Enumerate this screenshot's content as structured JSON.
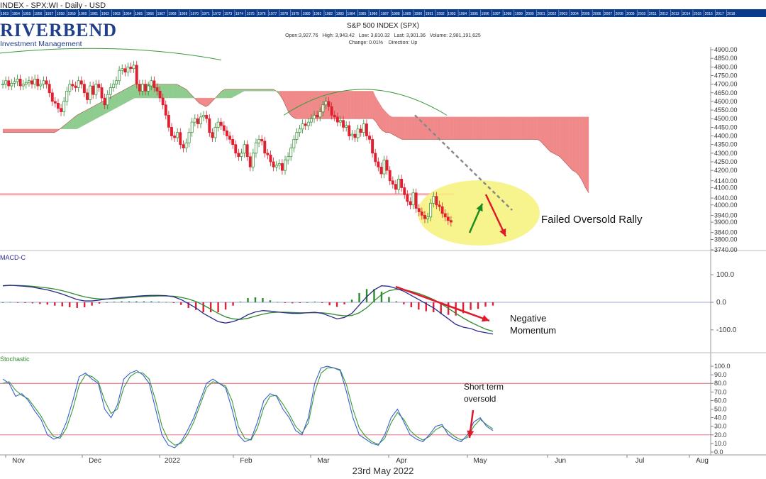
{
  "header": {
    "title": "INDEX - SPX:WI - Daily - USD",
    "logo_main": "RIVERBEND",
    "logo_sub": "Investment Management"
  },
  "chart_title": "S&P 500 INDEX (SPX)",
  "stats": {
    "open_label": "Open:",
    "open": "3,927.76",
    "high_label": "High:",
    "high": "3,943.42",
    "low_label": "Low:",
    "low": "3,810.32",
    "last_label": "Last:",
    "last": "3,901.36",
    "volume_label": "Volume:",
    "volume": "2,981,191,625",
    "change_label": "Change:",
    "change": "0.01%",
    "direction_label": "Direction:",
    "direction": "Up"
  },
  "timeline_years": [
    "1953",
    "1954",
    "1955",
    "1956",
    "1957",
    "1958",
    "1959",
    "1960",
    "1961",
    "1962",
    "1963",
    "1964",
    "1965",
    "1966",
    "1967",
    "1968",
    "1969",
    "1970",
    "1971",
    "1972",
    "1973",
    "1974",
    "1975",
    "1976",
    "1977",
    "1978",
    "1979",
    "1980",
    "1981",
    "1982",
    "1983",
    "1984",
    "1985",
    "1986",
    "1987",
    "1988",
    "1989",
    "1990",
    "1991",
    "1992",
    "1993",
    "1994",
    "1995",
    "1996",
    "1997",
    "1998",
    "1999",
    "2000",
    "2001",
    "2002",
    "2003",
    "2004",
    "2005",
    "2006",
    "2007",
    "2008",
    "2009",
    "2010",
    "2011",
    "2012",
    "2013",
    "2014",
    "2015",
    "2016",
    "2017",
    "2018"
  ],
  "panels": {
    "macd_label": "MACD-C",
    "stoch_label": "Stochastic"
  },
  "annotations": {
    "failed_rally": "Failed Oversold Rally",
    "negative_momentum_1": "Negative",
    "negative_momentum_2": "Momentum",
    "short_term_1": "Short term",
    "short_term_2": "oversold"
  },
  "footer_date": "23rd May 2022",
  "colors": {
    "up": "#2e8b2e",
    "down": "#e02030",
    "cloud_bull": "#8fcc8f",
    "cloud_bear": "#f08a8a",
    "support": "#f4a0a8",
    "highlight": "#f6f27a",
    "macd_line": "#2a2a8a",
    "signal_line": "#2e8b2e",
    "stoch_k": "#3a5fcd",
    "stoch_d": "#3a9a3a",
    "trend": "#888888",
    "arrow_up": "#1f8a1f",
    "arrow_down": "#e0182a"
  },
  "chart_data": [
    {
      "type": "candlestick",
      "title": "S&P 500 INDEX (SPX)",
      "ylim": [
        3740,
        4900
      ],
      "y_ticks": [
        4900,
        4850,
        4800,
        4750,
        4700,
        4650,
        4600,
        4550,
        4500,
        4450,
        4400,
        4350,
        4300,
        4250,
        4200,
        4140,
        4100,
        4040,
        4000,
        3940,
        3900,
        3840,
        3800,
        3740
      ],
      "y_tick_labels": [
        "4900.00",
        "4850.00",
        "4800.00",
        "4750.00",
        "4700.00",
        "4650.00",
        "4600.00",
        "4550.00",
        "4500.00",
        "4450.00",
        "4400.00",
        "4350.00",
        "4300.00",
        "4250.00",
        "4200.00",
        "4140.00",
        "4100.00",
        "4040.00",
        "4000.00",
        "3940.00",
        "3900.00",
        "3840.00",
        "3800.00",
        "3740.00"
      ],
      "x_labels": [
        "Nov",
        "Dec",
        "2022",
        "Feb",
        "Mar",
        "Apr",
        "May",
        "Jun",
        "Jul",
        "Aug"
      ],
      "closes": [
        4700,
        4720,
        4690,
        4705,
        4715,
        4730,
        4690,
        4700,
        4710,
        4720,
        4700,
        4730,
        4690,
        4700,
        4720,
        4700,
        4650,
        4600,
        4590,
        4560,
        4540,
        4600,
        4660,
        4700,
        4690,
        4680,
        4720,
        4700,
        4650,
        4610,
        4690,
        4640,
        4700,
        4680,
        4620,
        4580,
        4640,
        4680,
        4700,
        4720,
        4780,
        4790,
        4770,
        4800,
        4790,
        4810,
        4700,
        4660,
        4700,
        4660,
        4690,
        4720,
        4680,
        4660,
        4620,
        4580,
        4520,
        4450,
        4400,
        4390,
        4420,
        4350,
        4330,
        4360,
        4420,
        4480,
        4500,
        4470,
        4510,
        4520,
        4500,
        4420,
        4390,
        4450,
        4480,
        4460,
        4430,
        4400,
        4380,
        4350,
        4300,
        4280,
        4300,
        4350,
        4280,
        4220,
        4300,
        4360,
        4380,
        4370,
        4300,
        4290,
        4250,
        4220,
        4230,
        4240,
        4200,
        4260,
        4280,
        4330,
        4380,
        4420,
        4440,
        4470,
        4460,
        4480,
        4500,
        4520,
        4510,
        4540,
        4580,
        4600,
        4570,
        4520,
        4510,
        4480,
        4490,
        4450,
        4460,
        4400,
        4410,
        4390,
        4440,
        4420,
        4470,
        4400,
        4380,
        4300,
        4250,
        4220,
        4180,
        4260,
        4200,
        4140,
        4120,
        4090,
        4150,
        4100,
        4060,
        4020,
        4000,
        4070,
        3980,
        3960,
        3940,
        3920,
        3930,
        4010,
        4050,
        4000,
        3990,
        3950,
        3930,
        3910,
        3900
      ],
      "cloud_span_a": [
        4420,
        4420,
        4420,
        4420,
        4420,
        4420,
        4420,
        4420,
        4420,
        4420,
        4420,
        4420,
        4420,
        4420,
        4420,
        4420,
        4420,
        4430,
        4445,
        4460,
        4475,
        4490,
        4505,
        4520,
        4530,
        4540,
        4550,
        4560,
        4570,
        4580,
        4590,
        4600,
        4610,
        4620,
        4630,
        4640,
        4650,
        4660,
        4670,
        4680,
        4690,
        4700,
        4700,
        4700,
        4700,
        4700,
        4700,
        4700,
        4700,
        4700,
        4700,
        4700,
        4700,
        4700,
        4700,
        4690,
        4680,
        4670,
        4650,
        4630,
        4610,
        4590,
        4580,
        4570,
        4580,
        4600,
        4620,
        4640,
        4660,
        4670,
        4670,
        4670,
        4670,
        4670,
        4670,
        4670,
        4670,
        4670,
        4670,
        4670,
        4670,
        4670,
        4670,
        4670,
        4670,
        4660,
        4640,
        4610,
        4570,
        4530,
        4510,
        4500,
        4500,
        4500,
        4500,
        4500,
        4500,
        4500,
        4500,
        4500,
        4500,
        4500,
        4500,
        4500,
        4500,
        4500,
        4500,
        4500,
        4500,
        4500,
        4500,
        4500,
        4500,
        4500,
        4500,
        4500,
        4480,
        4450,
        4430,
        4420,
        4420,
        4410,
        4400,
        4390,
        4380,
        4380,
        4380,
        4380,
        4380,
        4380,
        4380,
        4380,
        4380,
        4380,
        4380,
        4380,
        4380,
        4380,
        4380,
        4380,
        4380,
        4380,
        4380,
        4380,
        4380,
        4380,
        4380,
        4380,
        4380,
        4380,
        4380,
        4380,
        4380,
        4380,
        4380,
        4380,
        4380,
        4380,
        4380,
        4380,
        4380,
        4380,
        4380,
        4380,
        4380,
        4380,
        4380,
        4370,
        4350,
        4330,
        4310,
        4300,
        4290,
        4280,
        4260,
        4240,
        4220,
        4200,
        4190,
        4170,
        4140,
        4100,
        4070
      ],
      "cloud_span_b": [
        4440,
        4440,
        4440,
        4440,
        4440,
        4440,
        4440,
        4440,
        4440,
        4440,
        4440,
        4440,
        4440,
        4440,
        4440,
        4440,
        4440,
        4440,
        4440,
        4440,
        4440,
        4440,
        4440,
        4440,
        4450,
        4460,
        4470,
        4480,
        4490,
        4500,
        4510,
        4520,
        4530,
        4540,
        4550,
        4560,
        4570,
        4580,
        4590,
        4600,
        4610,
        4620,
        4620,
        4620,
        4620,
        4620,
        4620,
        4620,
        4620,
        4620,
        4620,
        4620,
        4620,
        4620,
        4620,
        4620,
        4620,
        4620,
        4620,
        4620,
        4620,
        4620,
        4620,
        4620,
        4620,
        4620,
        4620,
        4620,
        4620,
        4620,
        4620,
        4620,
        4630,
        4640,
        4650,
        4660,
        4660,
        4660,
        4660,
        4660,
        4660,
        4660,
        4660,
        4660,
        4660,
        4660,
        4660,
        4660,
        4660,
        4660,
        4660,
        4660,
        4660,
        4660,
        4660,
        4660,
        4660,
        4660,
        4660,
        4660,
        4660,
        4660,
        4660,
        4660,
        4660,
        4660,
        4660,
        4660,
        4660,
        4660,
        4660,
        4660,
        4660,
        4660,
        4660,
        4660,
        4620,
        4590,
        4560,
        4540,
        4520,
        4510,
        4510,
        4510,
        4510,
        4510,
        4510,
        4510,
        4510,
        4510,
        4510,
        4510,
        4510,
        4510,
        4510,
        4510,
        4510,
        4510,
        4510,
        4510,
        4510,
        4510,
        4510,
        4510,
        4510,
        4510,
        4510,
        4510,
        4510,
        4510,
        4510,
        4510,
        4510,
        4510,
        4510,
        4510,
        4510,
        4510,
        4510,
        4510,
        4510,
        4510,
        4510,
        4510,
        4510,
        4510,
        4510,
        4510,
        4510,
        4510,
        4510,
        4510,
        4510,
        4510,
        4510,
        4510,
        4510,
        4510,
        4510,
        4510,
        4510,
        4510,
        4510
      ],
      "support_level": 4062
    },
    {
      "type": "line",
      "title": "MACD-C",
      "ylim": [
        -180,
        180
      ],
      "y_ticks": [
        100,
        0,
        -100
      ],
      "y_tick_labels": [
        "100.0",
        "0.0",
        "-100.0"
      ],
      "series": [
        {
          "values": [
            60,
            62,
            60,
            58,
            55,
            50,
            45,
            38,
            30,
            20,
            10,
            5,
            5,
            8,
            12,
            15,
            18,
            20,
            22,
            24,
            25,
            25,
            24,
            20,
            10,
            -5,
            -20,
            -40,
            -55,
            -70,
            -75,
            -70,
            -60,
            -45,
            -35,
            -30,
            -32,
            -35,
            -38,
            -40,
            -40,
            -38,
            -36,
            -40,
            -50,
            -60,
            -55,
            -40,
            -10,
            20,
            45,
            60,
            58,
            50,
            40,
            25,
            10,
            -5,
            -20,
            -40,
            -60,
            -80,
            -90,
            -95,
            -105,
            -110,
            -115
          ]
        },
        {
          "values": [
            60,
            61,
            61,
            60,
            58,
            55,
            52,
            48,
            42,
            35,
            27,
            20,
            15,
            12,
            12,
            13,
            15,
            17,
            19,
            21,
            22,
            23,
            23,
            22,
            18,
            12,
            3,
            -10,
            -25,
            -40,
            -53,
            -60,
            -62,
            -58,
            -50,
            -43,
            -38,
            -36,
            -36,
            -37,
            -38,
            -38,
            -38,
            -38,
            -41,
            -46,
            -49,
            -48,
            -38,
            -20,
            5,
            28,
            42,
            47,
            46,
            40,
            32,
            22,
            10,
            -5,
            -22,
            -40,
            -57,
            -72,
            -85,
            -97,
            -105
          ]
        }
      ]
    },
    {
      "type": "line",
      "title": "Stochastic",
      "ylim": [
        0,
        105
      ],
      "y_ticks": [
        100,
        90,
        80,
        70,
        60,
        50,
        40,
        30,
        20,
        10,
        0
      ],
      "y_tick_labels": [
        "100.0",
        "90.0",
        "80.0",
        "70.0",
        "60.0",
        "50.0",
        "40.0",
        "30.0",
        "20.0",
        "10.0",
        "0.0"
      ],
      "reference_lines": [
        80,
        20
      ],
      "series": [
        {
          "values": [
            85,
            80,
            65,
            68,
            60,
            48,
            38,
            20,
            15,
            18,
            35,
            60,
            88,
            92,
            85,
            80,
            50,
            40,
            55,
            85,
            92,
            95,
            90,
            80,
            50,
            20,
            8,
            5,
            12,
            25,
            40,
            60,
            80,
            85,
            80,
            75,
            50,
            20,
            12,
            15,
            35,
            60,
            68,
            65,
            50,
            40,
            25,
            20,
            40,
            80,
            98,
            100,
            98,
            95,
            70,
            40,
            20,
            15,
            10,
            8,
            20,
            40,
            50,
            35,
            20,
            15,
            12,
            20,
            30,
            32,
            20,
            15,
            12,
            20,
            35,
            40,
            30,
            25
          ]
        },
        {
          "values": [
            80,
            82,
            72,
            66,
            62,
            52,
            42,
            28,
            18,
            16,
            28,
            50,
            78,
            90,
            88,
            82,
            60,
            45,
            50,
            75,
            88,
            93,
            92,
            85,
            60,
            30,
            14,
            8,
            10,
            20,
            35,
            55,
            75,
            82,
            80,
            77,
            60,
            30,
            16,
            14,
            28,
            52,
            65,
            66,
            56,
            44,
            30,
            22,
            34,
            70,
            92,
            98,
            98,
            96,
            78,
            50,
            28,
            18,
            12,
            9,
            16,
            34,
            46,
            38,
            25,
            18,
            14,
            18,
            26,
            30,
            24,
            18,
            14,
            17,
            30,
            38,
            32,
            27
          ]
        }
      ]
    }
  ]
}
